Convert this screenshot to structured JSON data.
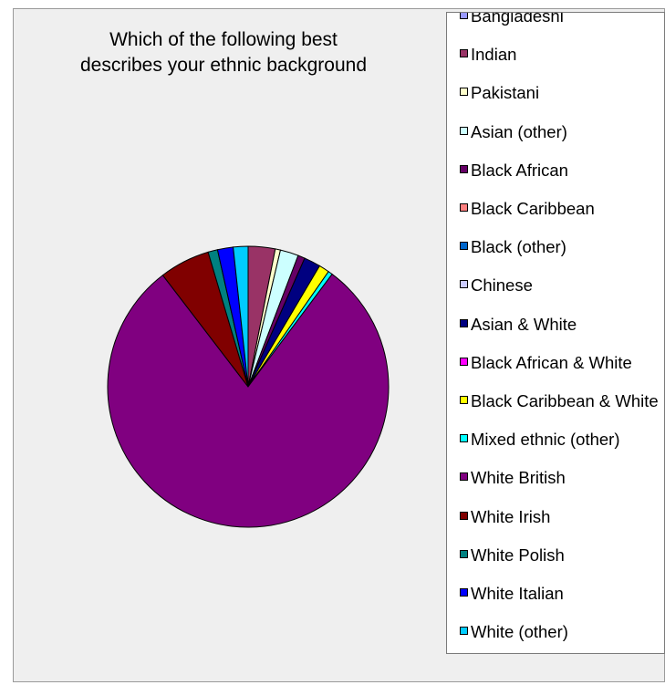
{
  "chart_data": {
    "type": "pie",
    "title": "Which of the following best\ndescribes your ethnic background",
    "legend_position": "right",
    "slices": [
      {
        "label": "Bangladeshi",
        "value": 0,
        "color": "#9999ff"
      },
      {
        "label": "Indian",
        "value": 3.1,
        "color": "#993366"
      },
      {
        "label": "Pakistani",
        "value": 0.6,
        "color": "#ffffcc"
      },
      {
        "label": "Asian (other)",
        "value": 2.1,
        "color": "#ccffff"
      },
      {
        "label": "Black African",
        "value": 0.8,
        "color": "#660066"
      },
      {
        "label": "Black Caribbean",
        "value": 0,
        "color": "#ff8080"
      },
      {
        "label": "Black (other)",
        "value": 0,
        "color": "#0066cc"
      },
      {
        "label": "Chinese",
        "value": 0,
        "color": "#ccccff"
      },
      {
        "label": "Asian & White",
        "value": 1.9,
        "color": "#000080"
      },
      {
        "label": "Black African & White",
        "value": 0,
        "color": "#ff00ff"
      },
      {
        "label": "Black Caribbean & White",
        "value": 1.2,
        "color": "#ffff00"
      },
      {
        "label": "Mixed ethnic (other)",
        "value": 0.5,
        "color": "#00ffff"
      },
      {
        "label": "White British",
        "value": 79.4,
        "color": "#800080"
      },
      {
        "label": "White Irish",
        "value": 5.8,
        "color": "#800000"
      },
      {
        "label": "White Polish",
        "value": 1.1,
        "color": "#008080"
      },
      {
        "label": "White Italian",
        "value": 1.8,
        "color": "#0000ff"
      },
      {
        "label": "White (other)",
        "value": 1.7,
        "color": "#00ccff"
      }
    ]
  }
}
